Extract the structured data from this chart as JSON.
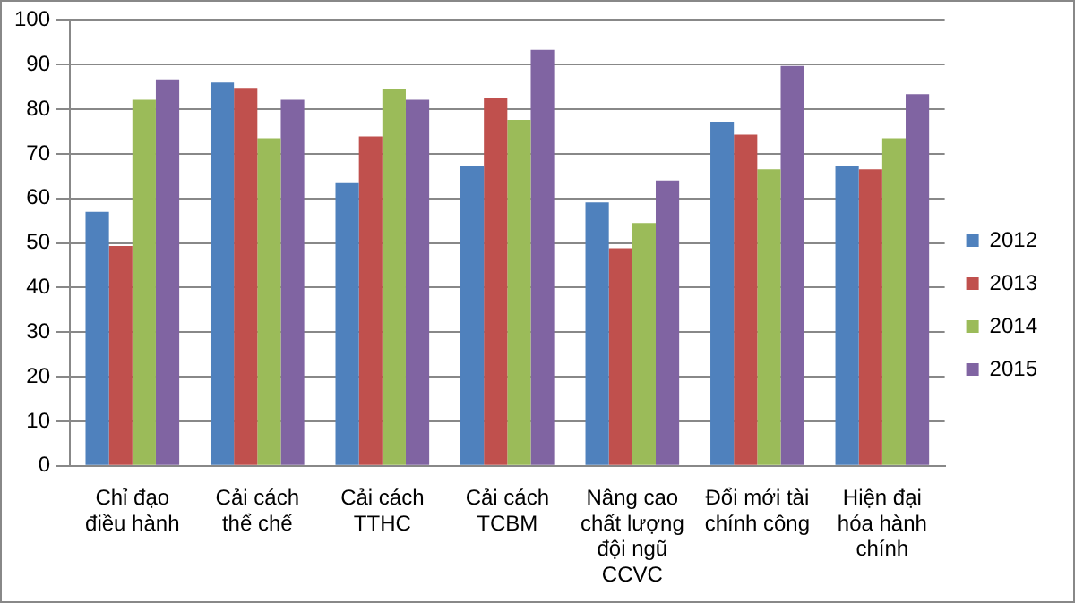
{
  "chart_data": {
    "type": "bar",
    "categories": [
      "Chỉ đạo điều hành",
      "Cải cách thể chế",
      "Cải cách TTHC",
      "Cải cách TCBM",
      "Nâng cao chất lượng đội ngũ CCVC",
      "Đổi mới tài chính công",
      "Hiện đại hóa hành chính"
    ],
    "series": [
      {
        "name": "2012",
        "color": "#4f81bd",
        "values": [
          57,
          86,
          63.6,
          67.3,
          59.1,
          77.2,
          67.3
        ]
      },
      {
        "name": "2013",
        "color": "#c0504d",
        "values": [
          49.3,
          84.8,
          73.9,
          82.6,
          48.8,
          74.3,
          66.5
        ]
      },
      {
        "name": "2014",
        "color": "#9bbb59",
        "values": [
          82.1,
          73.5,
          84.6,
          77.6,
          54.5,
          66.5,
          73.5
        ]
      },
      {
        "name": "2015",
        "color": "#8064a2",
        "values": [
          86.7,
          82.1,
          82.1,
          93.3,
          64,
          89.7,
          83.4
        ]
      }
    ],
    "ylim": [
      0,
      100
    ],
    "yticks": [
      0,
      10,
      20,
      30,
      40,
      50,
      60,
      70,
      80,
      90,
      100
    ],
    "grid": "y",
    "legend": "right"
  }
}
